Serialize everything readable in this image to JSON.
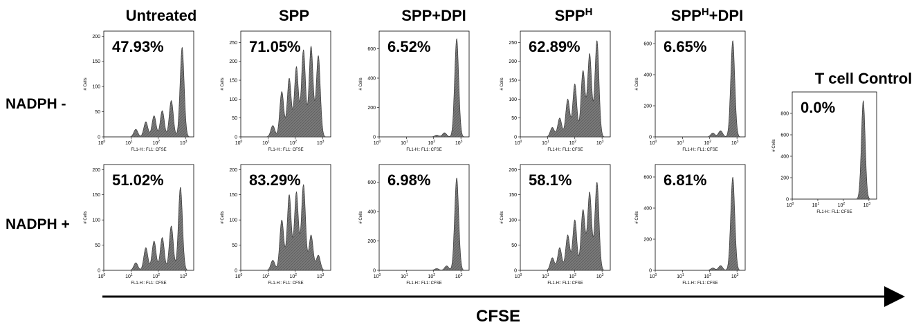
{
  "figure": {
    "row_labels": [
      "NADPH -",
      "NADPH +"
    ],
    "arrow_label": "CFSE"
  },
  "chart_data": [
    {
      "type": "area",
      "title": "Untreated",
      "subtitle": "NADPH -",
      "annotation": "47.93%",
      "xlabel": "FL1-H:: FL1: CFSE",
      "ylabel": "# Cells",
      "x_scale": "log",
      "xlim": [
        1,
        2000
      ],
      "ylim": [
        0,
        210
      ],
      "yticks": [
        0,
        50,
        100,
        150,
        200
      ],
      "xticks": [
        "10^0",
        "10^1",
        "10^2",
        "10^3"
      ],
      "peaks": [
        [
          15,
          15
        ],
        [
          35,
          30
        ],
        [
          70,
          42
        ],
        [
          140,
          52
        ],
        [
          300,
          72
        ],
        [
          750,
          178
        ]
      ]
    },
    {
      "type": "area",
      "title": "SPP",
      "subtitle": "NADPH -",
      "annotation": "71.05%",
      "xlabel": "FL1-H:: FL1: CFSE",
      "ylabel": "# Cells",
      "x_scale": "log",
      "xlim": [
        1,
        2000
      ],
      "ylim": [
        0,
        280
      ],
      "yticks": [
        0,
        50,
        100,
        150,
        200,
        250
      ],
      "xticks": [
        "10^0",
        "10^1",
        "10^2",
        "10^3"
      ],
      "peaks": [
        [
          15,
          30
        ],
        [
          32,
          120
        ],
        [
          60,
          155
        ],
        [
          110,
          185
        ],
        [
          200,
          230
        ],
        [
          380,
          240
        ],
        [
          700,
          215
        ]
      ]
    },
    {
      "type": "area",
      "title": "SPP+DPI",
      "subtitle": "NADPH -",
      "annotation": "6.52%",
      "xlabel": "FL1-H:: FL1: CFSE",
      "ylabel": "# Cells",
      "x_scale": "log",
      "xlim": [
        1,
        2000
      ],
      "ylim": [
        0,
        720
      ],
      "yticks": [
        0,
        200,
        400,
        600
      ],
      "xticks": [
        "10^0",
        "10^1",
        "10^2",
        "10^3"
      ],
      "peaks": [
        [
          130,
          12
        ],
        [
          250,
          28
        ],
        [
          700,
          670
        ]
      ]
    },
    {
      "type": "area",
      "title": "SPPH",
      "subtitle": "NADPH -",
      "annotation": "62.89%",
      "xlabel": "FL1-H:: FL1: CFSE",
      "ylabel": "# Cells",
      "x_scale": "log",
      "xlim": [
        1,
        2000
      ],
      "ylim": [
        0,
        280
      ],
      "yticks": [
        0,
        50,
        100,
        150,
        200,
        250
      ],
      "xticks": [
        "10^0",
        "10^1",
        "10^2",
        "10^3"
      ],
      "peaks": [
        [
          15,
          25
        ],
        [
          28,
          50
        ],
        [
          55,
          100
        ],
        [
          100,
          140
        ],
        [
          200,
          175
        ],
        [
          350,
          220
        ],
        [
          650,
          255
        ]
      ]
    },
    {
      "type": "area",
      "title": "SPPH+DPI",
      "subtitle": "NADPH -",
      "annotation": "6.65%",
      "xlabel": "FL1-H:: FL1: CFSE",
      "ylabel": "# Cells",
      "x_scale": "log",
      "xlim": [
        1,
        2000
      ],
      "ylim": [
        0,
        680
      ],
      "yticks": [
        0,
        200,
        400,
        600
      ],
      "xticks": [
        "10^0",
        "10^1",
        "10^2",
        "10^3"
      ],
      "peaks": [
        [
          130,
          25
        ],
        [
          250,
          40
        ],
        [
          700,
          620
        ]
      ]
    },
    {
      "type": "area",
      "title": "",
      "subtitle": "NADPH +",
      "annotation": "51.02%",
      "xlabel": "FL1-H:: FL1: CFSE",
      "ylabel": "# Cells",
      "x_scale": "log",
      "xlim": [
        1,
        2000
      ],
      "ylim": [
        0,
        210
      ],
      "yticks": [
        0,
        50,
        100,
        150,
        200
      ],
      "xticks": [
        "10^0",
        "10^1",
        "10^2",
        "10^3"
      ],
      "peaks": [
        [
          15,
          15
        ],
        [
          35,
          45
        ],
        [
          70,
          58
        ],
        [
          140,
          65
        ],
        [
          300,
          88
        ],
        [
          650,
          165
        ]
      ]
    },
    {
      "type": "area",
      "title": "",
      "subtitle": "NADPH +",
      "annotation": "83.29%",
      "xlabel": "FL1-H:: FL1: CFSE",
      "ylabel": "# Cells",
      "x_scale": "log",
      "xlim": [
        1,
        2000
      ],
      "ylim": [
        0,
        210
      ],
      "yticks": [
        0,
        50,
        100,
        150,
        200
      ],
      "xticks": [
        "10^0",
        "10^1",
        "10^2",
        "10^3"
      ],
      "peaks": [
        [
          15,
          20
        ],
        [
          32,
          100
        ],
        [
          60,
          150
        ],
        [
          110,
          155
        ],
        [
          200,
          170
        ],
        [
          380,
          70
        ],
        [
          700,
          30
        ]
      ]
    },
    {
      "type": "area",
      "title": "",
      "subtitle": "NADPH +",
      "annotation": "6.98%",
      "xlabel": "FL1-H:: FL1: CFSE",
      "ylabel": "# Cells",
      "x_scale": "log",
      "xlim": [
        1,
        2000
      ],
      "ylim": [
        0,
        720
      ],
      "yticks": [
        0,
        200,
        400,
        600
      ],
      "xticks": [
        "10^0",
        "10^1",
        "10^2",
        "10^3"
      ],
      "peaks": [
        [
          130,
          12
        ],
        [
          300,
          30
        ],
        [
          700,
          630
        ]
      ]
    },
    {
      "type": "area",
      "title": "",
      "subtitle": "NADPH +",
      "annotation": "58.1%",
      "xlabel": "FL1-H:: FL1: CFSE",
      "ylabel": "# Cells",
      "x_scale": "log",
      "xlim": [
        1,
        2000
      ],
      "ylim": [
        0,
        210
      ],
      "yticks": [
        0,
        50,
        100,
        150,
        200
      ],
      "xticks": [
        "10^0",
        "10^1",
        "10^2",
        "10^3"
      ],
      "peaks": [
        [
          15,
          25
        ],
        [
          28,
          45
        ],
        [
          55,
          70
        ],
        [
          100,
          100
        ],
        [
          200,
          120
        ],
        [
          350,
          155
        ],
        [
          650,
          175
        ]
      ]
    },
    {
      "type": "area",
      "title": "",
      "subtitle": "NADPH +",
      "annotation": "6.81%",
      "xlabel": "FL1-H:: FL1: CFSE",
      "ylabel": "# Cells",
      "x_scale": "log",
      "xlim": [
        1,
        2000
      ],
      "ylim": [
        0,
        680
      ],
      "yticks": [
        0,
        200,
        400,
        600
      ],
      "xticks": [
        "10^0",
        "10^1",
        "10^2",
        "10^3"
      ],
      "peaks": [
        [
          130,
          15
        ],
        [
          250,
          30
        ],
        [
          700,
          600
        ]
      ]
    },
    {
      "type": "area",
      "title": "T cell Control",
      "subtitle": "",
      "annotation": "0.0%",
      "xlabel": "FL1-H:: FL1: CFSE",
      "ylabel": "# Cells",
      "x_scale": "log",
      "xlim": [
        1,
        2000
      ],
      "ylim": [
        0,
        1000
      ],
      "yticks": [
        0,
        200,
        400,
        600,
        800
      ],
      "xticks": [
        "10^0",
        "10^1",
        "10^2",
        "10^3"
      ],
      "peaks": [
        [
          600,
          920
        ]
      ]
    }
  ]
}
